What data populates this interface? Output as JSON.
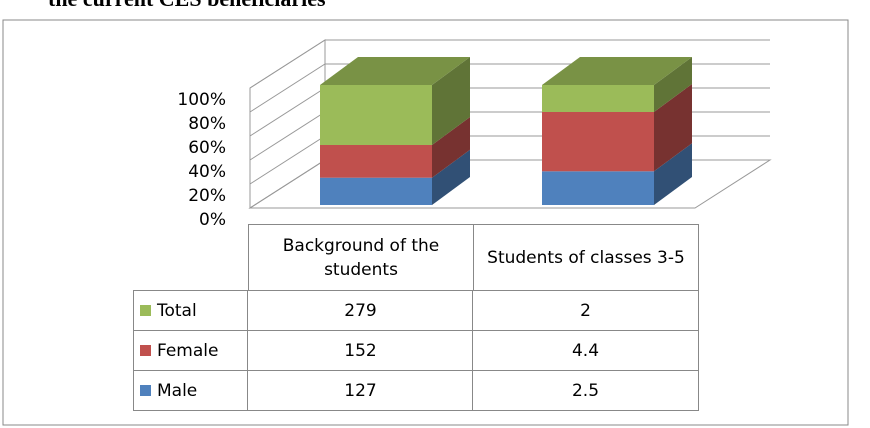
{
  "caption": "the current CES beneficiaries",
  "chart_data": {
    "type": "bar",
    "stacked": "percent",
    "categories": [
      "Background of the students",
      "Students of classes 3-5"
    ],
    "series": [
      {
        "name": "Total",
        "color": "#9bbb59",
        "values": [
          279,
          2
        ]
      },
      {
        "name": "Female",
        "color": "#c0504d",
        "values": [
          152,
          4.4
        ]
      },
      {
        "name": "Male",
        "color": "#4f81bd",
        "values": [
          127,
          2.5
        ]
      }
    ],
    "ylim": [
      0,
      100
    ],
    "yticks": [
      {
        "value": 0,
        "label": "0%"
      },
      {
        "value": 20,
        "label": "20%"
      },
      {
        "value": 40,
        "label": "40%"
      },
      {
        "value": 60,
        "label": "60%"
      },
      {
        "value": 80,
        "label": "80%"
      },
      {
        "value": 100,
        "label": "100%"
      }
    ],
    "grid": true,
    "data_table": true
  }
}
